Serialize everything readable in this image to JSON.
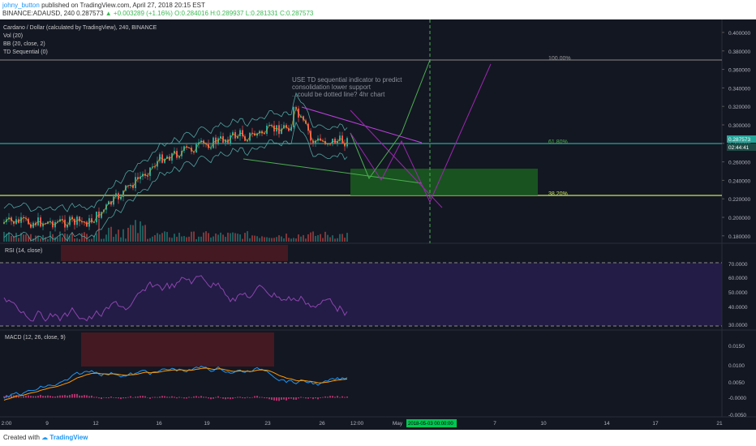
{
  "header": {
    "username": "johny_button",
    "published_text": "published on TradingView.com, April 27, 2018 20:15 EST",
    "symbol": "BINANCE:ADAUSD, 240",
    "price": "0.287573",
    "change": "▲ +0.003289 (+1.16%)",
    "ohlc": "O:0.284016 H:0.289937 L:0.281331 C:0.287573"
  },
  "legend": {
    "title": "Cardano / Dollar (calculated by TradingView), 240, BINANCE",
    "vol": "Vol (20)",
    "bb": "BB (20, close, 2)",
    "td": "TD Sequential (0)"
  },
  "annotation": {
    "line1": "USE TD sequential indicator to predict",
    "line2": "consolidation lower support",
    "line3": "...could be dotted line? 4hr chart"
  },
  "fib": {
    "l100": "100.00%",
    "l618": "61.80%",
    "l382": "38.20%"
  },
  "price_axis": [
    "0.400000",
    "0.380000",
    "0.360000",
    "0.340000",
    "0.320000",
    "0.300000",
    "0.280000",
    "0.260000",
    "0.240000",
    "0.220000",
    "0.200000",
    "0.180000"
  ],
  "current_price": {
    "value": "0.287573",
    "countdown": "02:44:41"
  },
  "rsi": {
    "label": "RSI (14, close)",
    "axis": [
      "70.0000",
      "60.0000",
      "50.0000",
      "40.0000",
      "30.0000"
    ]
  },
  "macd": {
    "label": "MACD (12, 26, close, 9)",
    "axis": [
      "0.0150",
      "0.0100",
      "0.0050",
      "-0.0000",
      "-0.0050"
    ]
  },
  "time_axis": [
    "2:00",
    "9",
    "12",
    "16",
    "19",
    "23",
    "26",
    "12:00",
    "May",
    "7",
    "10",
    "14",
    "17",
    "21"
  ],
  "time_highlight": "2018-05-03 00:00:00",
  "footer": {
    "created_with": "Created with",
    "brand": "TradingView"
  },
  "colors": {
    "bg": "#131722",
    "up": "#26a69a",
    "down": "#ef5350",
    "fib": "#c8e65a",
    "fib100": "#888888",
    "green_box": "#1b5e20",
    "rsi_band": "#2a1f55",
    "highlight": "#00c853"
  }
}
